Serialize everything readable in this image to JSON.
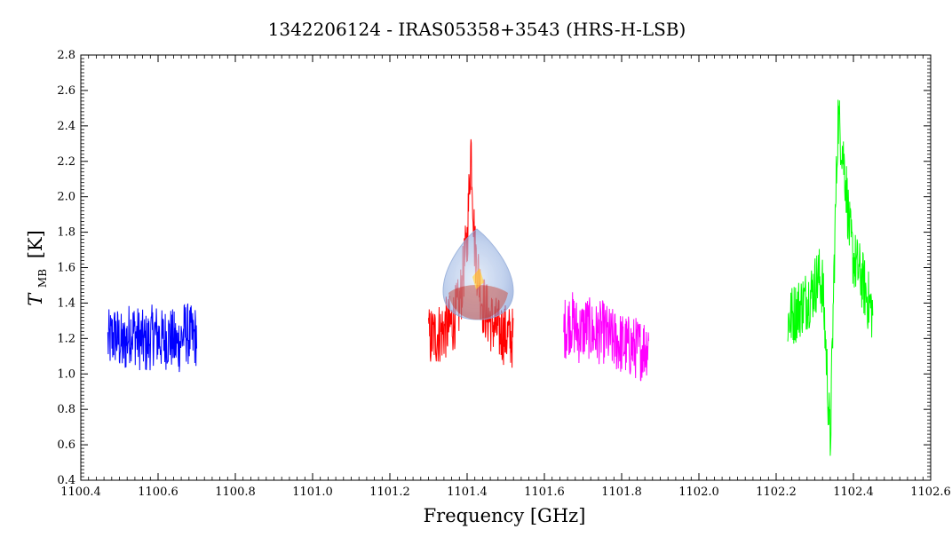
{
  "chart_data": {
    "type": "line",
    "title": "1342206124 - IRAS05358+3543 (HRS-H-LSB)",
    "xlabel": "Frequency [GHz]",
    "ylabel_main": "T",
    "ylabel_sub": "MB",
    "ylabel_unit": "[K]",
    "xlim": [
      1100.4,
      1102.6
    ],
    "ylim": [
      0.4,
      2.8
    ],
    "x_ticks": [
      1100.4,
      1100.6,
      1100.8,
      1101.0,
      1101.2,
      1101.4,
      1101.6,
      1101.8,
      1102.0,
      1102.2,
      1102.4,
      1102.6
    ],
    "x_tick_labels": [
      "1100.4",
      "1100.6",
      "1100.8",
      "1101.0",
      "1101.2",
      "1101.4",
      "1101.6",
      "1101.8",
      "1102.0",
      "1102.2",
      "1102.4",
      "1102.6"
    ],
    "y_ticks": [
      0.4,
      0.6,
      0.8,
      1.0,
      1.2,
      1.4,
      1.6,
      1.8,
      2.0,
      2.2,
      2.4,
      2.6,
      2.8
    ],
    "y_tick_labels": [
      "0.4",
      "0.6",
      "0.8",
      "1.0",
      "1.2",
      "1.4",
      "1.6",
      "1.8",
      "2.0",
      "2.2",
      "2.4",
      "2.6",
      "2.8"
    ],
    "grid": false,
    "legend": "none",
    "series": [
      {
        "color": "#0000ff",
        "x": [
          1100.47,
          1100.49,
          1100.51,
          1100.53,
          1100.55,
          1100.57,
          1100.59,
          1100.61,
          1100.63,
          1100.65,
          1100.67,
          1100.69,
          1100.7
        ],
        "y": [
          1.18,
          1.22,
          1.15,
          1.25,
          1.2,
          1.17,
          1.23,
          1.19,
          1.21,
          1.16,
          1.24,
          1.2,
          1.22
        ]
      },
      {
        "color": "#ff0000",
        "x": [
          1101.3,
          1101.32,
          1101.34,
          1101.36,
          1101.38,
          1101.4,
          1101.41,
          1101.42,
          1101.44,
          1101.46,
          1101.48,
          1101.5,
          1101.52
        ],
        "y": [
          1.2,
          1.22,
          1.25,
          1.28,
          1.38,
          1.75,
          2.3,
          1.7,
          1.4,
          1.3,
          1.25,
          1.22,
          1.2
        ]
      },
      {
        "color": "#ff00ff",
        "x": [
          1101.65,
          1101.67,
          1101.69,
          1101.71,
          1101.73,
          1101.75,
          1101.77,
          1101.79,
          1101.81,
          1101.83,
          1101.85,
          1101.87
        ],
        "y": [
          1.25,
          1.3,
          1.23,
          1.27,
          1.22,
          1.24,
          1.2,
          1.18,
          1.16,
          1.15,
          1.14,
          1.17
        ]
      },
      {
        "color": "#00ff00",
        "x": [
          1102.23,
          1102.25,
          1102.27,
          1102.29,
          1102.31,
          1102.32,
          1102.33,
          1102.34,
          1102.35,
          1102.36,
          1102.37,
          1102.38,
          1102.39,
          1102.4,
          1102.42,
          1102.44,
          1102.45
        ],
        "y": [
          1.3,
          1.35,
          1.4,
          1.45,
          1.55,
          1.5,
          1.1,
          0.6,
          1.6,
          2.45,
          2.3,
          2.1,
          1.8,
          1.65,
          1.55,
          1.4,
          1.35
        ]
      }
    ]
  },
  "overlay": {
    "icon": "droplet-icon",
    "colors": [
      "#aac4e8",
      "#6f8fcf",
      "#ffd23f",
      "#c0392b"
    ]
  }
}
